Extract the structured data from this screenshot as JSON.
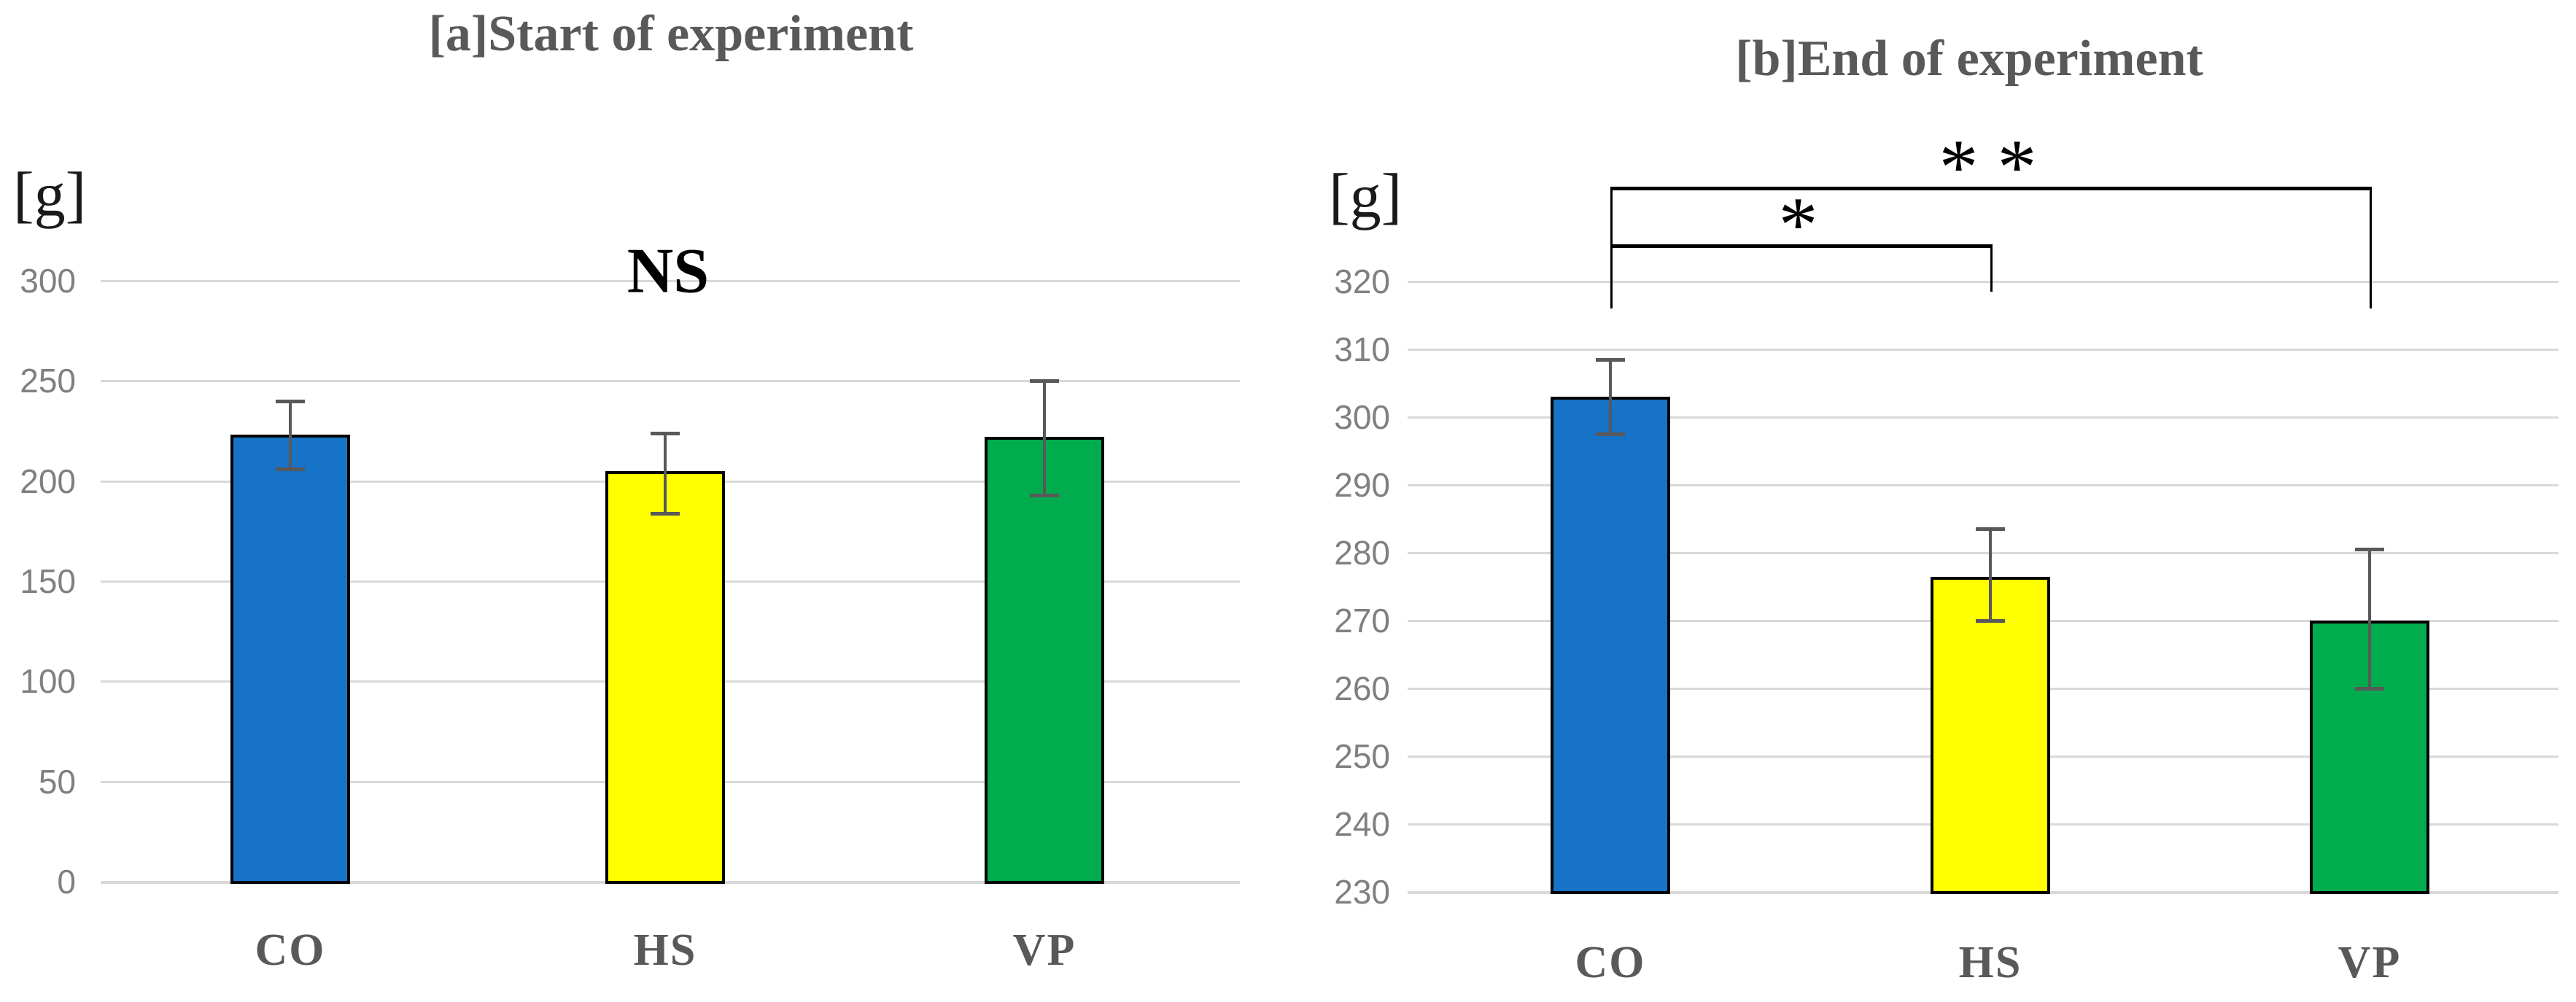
{
  "figure": {
    "type": "two-panel bar chart with error bars",
    "background": "#FFFFFF"
  },
  "colors": {
    "bar_fill": [
      "#1673C8",
      "#FFFF00",
      "#00AC4D"
    ],
    "bar_border": "#000000",
    "error_bar": "#595959",
    "gridline": "#D9D9D9",
    "tick_label": "#808080",
    "category_label": "#595959",
    "title": "#595959",
    "annotation": "#000000"
  },
  "chart_data": [
    {
      "type": "bar",
      "panel": "a",
      "title": "[a]Start of experiment",
      "ylabel": "[g]",
      "categories": [
        "CO",
        "HS",
        "VP"
      ],
      "values": [
        223,
        205,
        222
      ],
      "error_high": [
        240,
        224,
        250
      ],
      "error_low": [
        206,
        184,
        193
      ],
      "ylim": [
        0,
        300
      ],
      "ytick_step": 50,
      "yticks": [
        0,
        50,
        100,
        150,
        200,
        250,
        300
      ],
      "grid": true,
      "legend": "none",
      "annotation": "NS"
    },
    {
      "type": "bar",
      "panel": "b",
      "title": "[b]End of experiment",
      "ylabel": "[g]",
      "categories": [
        "CO",
        "HS",
        "VP"
      ],
      "values": [
        303,
        276.5,
        270
      ],
      "error_high": [
        308.5,
        283.5,
        280.5
      ],
      "error_low": [
        297.5,
        270,
        260
      ],
      "ylim": [
        230,
        320
      ],
      "ytick_step": 10,
      "yticks": [
        230,
        240,
        250,
        260,
        270,
        280,
        290,
        300,
        310,
        320
      ],
      "grid": true,
      "legend": "none",
      "significance_brackets": [
        {
          "label": "*",
          "from": "CO",
          "to": "HS",
          "level": 325.5,
          "drop_from": 316,
          "drop_to": 318.5
        },
        {
          "label": "**",
          "from": "CO",
          "to": "VP",
          "level": 334,
          "drop_from": 316,
          "drop_to": 316
        }
      ]
    }
  ]
}
